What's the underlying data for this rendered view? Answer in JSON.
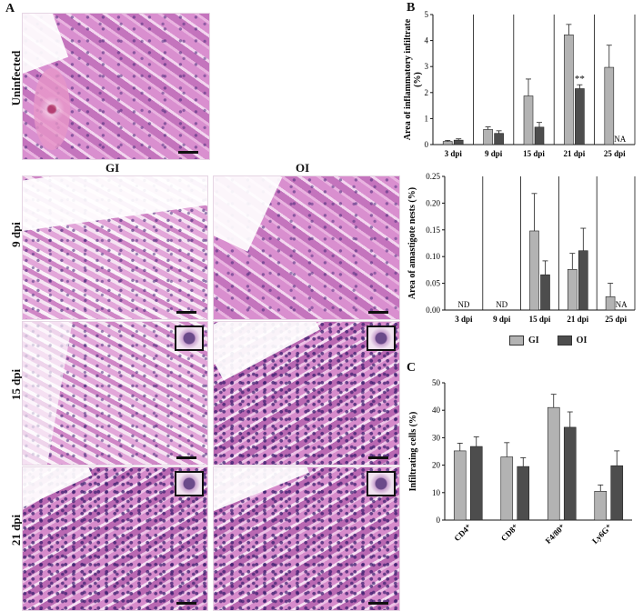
{
  "panel_a": {
    "letter": "A",
    "row_uninfected": "Uninfected",
    "col_gi": "GI",
    "col_oi": "OI",
    "row_9": "9 dpi",
    "row_15": "15 dpi",
    "row_21": "21 dpi"
  },
  "panel_b_letter": "B",
  "panel_c_letter": "C",
  "legend": [
    {
      "label": "GI",
      "color": "#b3b3b3"
    },
    {
      "label": "OI",
      "color": "#4d4d4d"
    }
  ],
  "chart_data": [
    {
      "type": "bar",
      "ylabel": "Area of inflammatory infiltrate (%)",
      "ylim": [
        0,
        5
      ],
      "yticks": [
        "0",
        "1",
        "2",
        "3",
        "4",
        "5"
      ],
      "categories": [
        "3 dpi",
        "9 dpi",
        "15 dpi",
        "21 dpi",
        "25 dpi"
      ],
      "series": [
        {
          "name": "GI",
          "values": [
            0.12,
            0.58,
            1.87,
            4.22,
            2.97
          ],
          "errors": [
            0.04,
            0.1,
            0.65,
            0.4,
            0.85
          ]
        },
        {
          "name": "OI",
          "values": [
            0.17,
            0.43,
            0.67,
            2.15,
            null
          ],
          "errors": [
            0.05,
            0.1,
            0.18,
            0.15,
            null
          ]
        }
      ],
      "annotations": [
        {
          "category": "21 dpi",
          "series": "OI",
          "text": "**"
        },
        {
          "category": "25 dpi",
          "series": "OI",
          "text": "NA"
        }
      ],
      "grid": false
    },
    {
      "type": "bar",
      "ylabel": "Area of amastigote nests (%)",
      "ylim": [
        0,
        0.25
      ],
      "yticks": [
        "0.00",
        "0.05",
        "0.10",
        "0.15",
        "0.20",
        "0.25"
      ],
      "categories": [
        "3 dpi",
        "9 dpi",
        "15 dpi",
        "21 dpi",
        "25 dpi"
      ],
      "series": [
        {
          "name": "GI",
          "values": [
            null,
            null,
            0.148,
            0.076,
            0.025
          ],
          "errors": [
            null,
            null,
            0.07,
            0.03,
            0.025
          ]
        },
        {
          "name": "OI",
          "values": [
            null,
            null,
            0.066,
            0.111,
            null
          ],
          "errors": [
            null,
            null,
            0.026,
            0.042,
            null
          ]
        }
      ],
      "annotations": [
        {
          "category": "3 dpi",
          "text": "ND"
        },
        {
          "category": "9 dpi",
          "text": "ND"
        },
        {
          "category": "25 dpi",
          "series": "OI",
          "text": "NA"
        }
      ],
      "grid": false
    },
    {
      "type": "bar",
      "ylabel": "Infiltrating cells (%)",
      "ylim": [
        0,
        50
      ],
      "yticks": [
        "0",
        "10",
        "20",
        "30",
        "40",
        "50"
      ],
      "categories": [
        "CD4⁺",
        "CD8⁺",
        "F4/80⁺",
        "Ly6G⁺"
      ],
      "series": [
        {
          "name": "GI",
          "values": [
            25.2,
            23.0,
            41.0,
            10.5
          ],
          "errors": [
            2.8,
            5.2,
            4.8,
            2.3
          ]
        },
        {
          "name": "OI",
          "values": [
            26.8,
            19.5,
            33.8,
            19.8
          ],
          "errors": [
            3.5,
            3.2,
            5.6,
            5.4
          ]
        }
      ],
      "grid": false
    }
  ]
}
